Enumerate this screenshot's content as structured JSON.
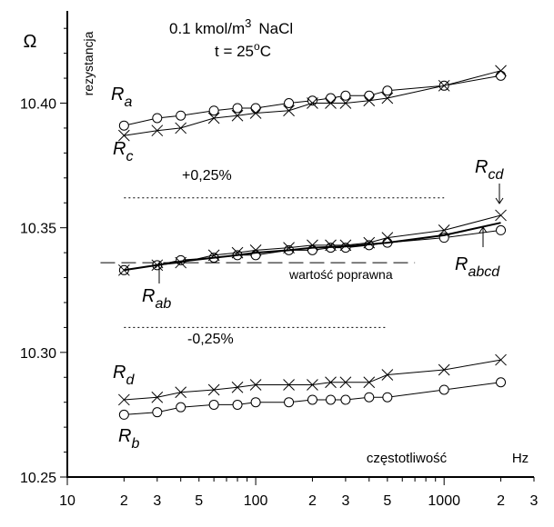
{
  "chart_data": {
    "type": "line",
    "title_line1": "0.1 kmol/m",
    "title_sup": "3",
    "title_tail": "NaCl",
    "title_line2": "t = 25",
    "title_line2_sup": "o",
    "title_line2_tail": "C",
    "ylabel": "rezystancja",
    "yunit": "Ω",
    "xlabel": "częstotliwość",
    "xunit": "Hz",
    "x_scale": "log",
    "xlim": [
      10,
      3000
    ],
    "ylim": [
      10.25,
      10.437
    ],
    "y_ticks": [
      10.25,
      10.3,
      10.35,
      10.4
    ],
    "y_tick_labels": [
      "10.25",
      "10.30",
      "10.35",
      "10.40"
    ],
    "x_tick_labels": [
      {
        "x": 10,
        "label": "10"
      },
      {
        "x": 20,
        "label": "2"
      },
      {
        "x": 30,
        "label": "3"
      },
      {
        "x": 50,
        "label": "5"
      },
      {
        "x": 100,
        "label": "100"
      },
      {
        "x": 200,
        "label": "2"
      },
      {
        "x": 300,
        "label": "3"
      },
      {
        "x": 500,
        "label": "5"
      },
      {
        "x": 1000,
        "label": "1000"
      },
      {
        "x": 2000,
        "label": "2"
      },
      {
        "x": 3000,
        "label": "3"
      }
    ],
    "series": [
      {
        "name": "Ra",
        "marker": "circle",
        "x": [
          20,
          30,
          40,
          60,
          80,
          100,
          150,
          200,
          250,
          300,
          400,
          500,
          1000,
          2000
        ],
        "y": [
          10.391,
          10.394,
          10.395,
          10.397,
          10.398,
          10.398,
          10.4,
          10.401,
          10.402,
          10.403,
          10.403,
          10.405,
          10.407,
          10.411
        ]
      },
      {
        "name": "Rc",
        "marker": "cross",
        "x": [
          20,
          30,
          40,
          60,
          80,
          100,
          150,
          200,
          250,
          300,
          400,
          500,
          1000,
          2000
        ],
        "y": [
          10.387,
          10.389,
          10.39,
          10.394,
          10.395,
          10.396,
          10.397,
          10.4,
          10.4,
          10.4,
          10.401,
          10.402,
          10.407,
          10.413
        ]
      },
      {
        "name": "Rab",
        "marker": "circle",
        "x": [
          20,
          30,
          40,
          60,
          80,
          100,
          150,
          200,
          250,
          300,
          400,
          500,
          1000,
          2000
        ],
        "y": [
          10.333,
          10.335,
          10.337,
          10.338,
          10.339,
          10.339,
          10.341,
          10.341,
          10.342,
          10.342,
          10.343,
          10.344,
          10.346,
          10.349
        ]
      },
      {
        "name": "Rcd",
        "marker": "cross",
        "x": [
          20,
          30,
          40,
          60,
          80,
          100,
          150,
          200,
          250,
          300,
          400,
          500,
          1000,
          2000
        ],
        "y": [
          10.333,
          10.335,
          10.336,
          10.339,
          10.34,
          10.341,
          10.342,
          10.343,
          10.343,
          10.343,
          10.344,
          10.346,
          10.349,
          10.355
        ]
      },
      {
        "name": "Rabcd",
        "marker": "none",
        "x": [
          20,
          30,
          40,
          60,
          80,
          100,
          150,
          200,
          300,
          500,
          1000,
          2000
        ],
        "y": [
          10.333,
          10.335,
          10.3365,
          10.338,
          10.339,
          10.34,
          10.341,
          10.342,
          10.3425,
          10.344,
          10.347,
          10.352
        ]
      },
      {
        "name": "Rd",
        "marker": "cross",
        "x": [
          20,
          30,
          40,
          60,
          80,
          100,
          150,
          200,
          250,
          300,
          400,
          500,
          1000,
          2000
        ],
        "y": [
          10.281,
          10.282,
          10.284,
          10.285,
          10.286,
          10.287,
          10.287,
          10.287,
          10.288,
          10.288,
          10.288,
          10.291,
          10.293,
          10.297
        ]
      },
      {
        "name": "Rb",
        "marker": "circle",
        "x": [
          20,
          30,
          40,
          60,
          80,
          100,
          150,
          200,
          250,
          300,
          400,
          500,
          1000,
          2000
        ],
        "y": [
          10.275,
          10.276,
          10.278,
          10.279,
          10.279,
          10.28,
          10.28,
          10.281,
          10.281,
          10.281,
          10.282,
          10.282,
          10.285,
          10.288
        ]
      }
    ],
    "reference_lines": [
      {
        "label": "+0,25%",
        "y": 10.362,
        "x_from": 20,
        "x_to": 1000,
        "style": "dotted"
      },
      {
        "label": "wartość poprawna",
        "y": 10.336,
        "x_from": 15,
        "x_to": 700,
        "style": "dashed"
      },
      {
        "label": "-0,25%",
        "y": 10.31,
        "x_from": 20,
        "x_to": 500,
        "style": "dotted"
      }
    ],
    "annotations": {
      "Ra": {
        "main": "R",
        "sub": "a"
      },
      "Rc": {
        "main": "R",
        "sub": "c"
      },
      "Rab": {
        "main": "R",
        "sub": "ab"
      },
      "Rcd": {
        "main": "R",
        "sub": "cd"
      },
      "Rabcd": {
        "main": "R",
        "sub": "abcd"
      },
      "Rd": {
        "main": "R",
        "sub": "d"
      },
      "Rb": {
        "main": "R",
        "sub": "b"
      },
      "plus": "+0,25%",
      "minus": "-0,25%",
      "correct": "wartość poprawna"
    }
  }
}
